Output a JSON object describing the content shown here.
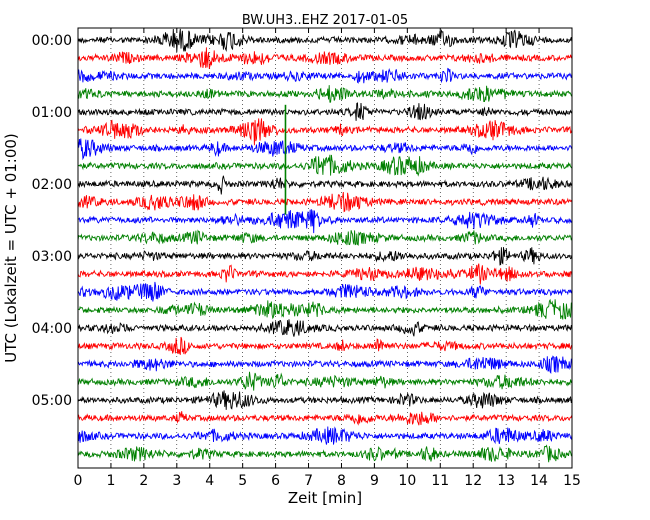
{
  "chart_data": {
    "type": "line",
    "title": "BW.UH3..EHZ 2017-01-05",
    "xlabel": "Zeit  [min]",
    "ylabel": "UTC (Lokalzeit = UTC + 01:00)",
    "xlim": [
      0,
      15
    ],
    "x_ticks": [
      "0",
      "1",
      "2",
      "3",
      "4",
      "5",
      "6",
      "7",
      "8",
      "9",
      "10",
      "11",
      "12",
      "13",
      "14",
      "15"
    ],
    "y_tick_labels": [
      "00:00",
      "01:00",
      "02:00",
      "03:00",
      "04:00",
      "05:00"
    ],
    "trace_interval_minutes": 15,
    "trace_count": 24,
    "color_cycle": [
      "#000000",
      "#ff0000",
      "#0000ff",
      "#008000"
    ],
    "vertical_grid": "dotted",
    "spike_event": {
      "x_min": 6.3,
      "color": "#008000"
    }
  }
}
